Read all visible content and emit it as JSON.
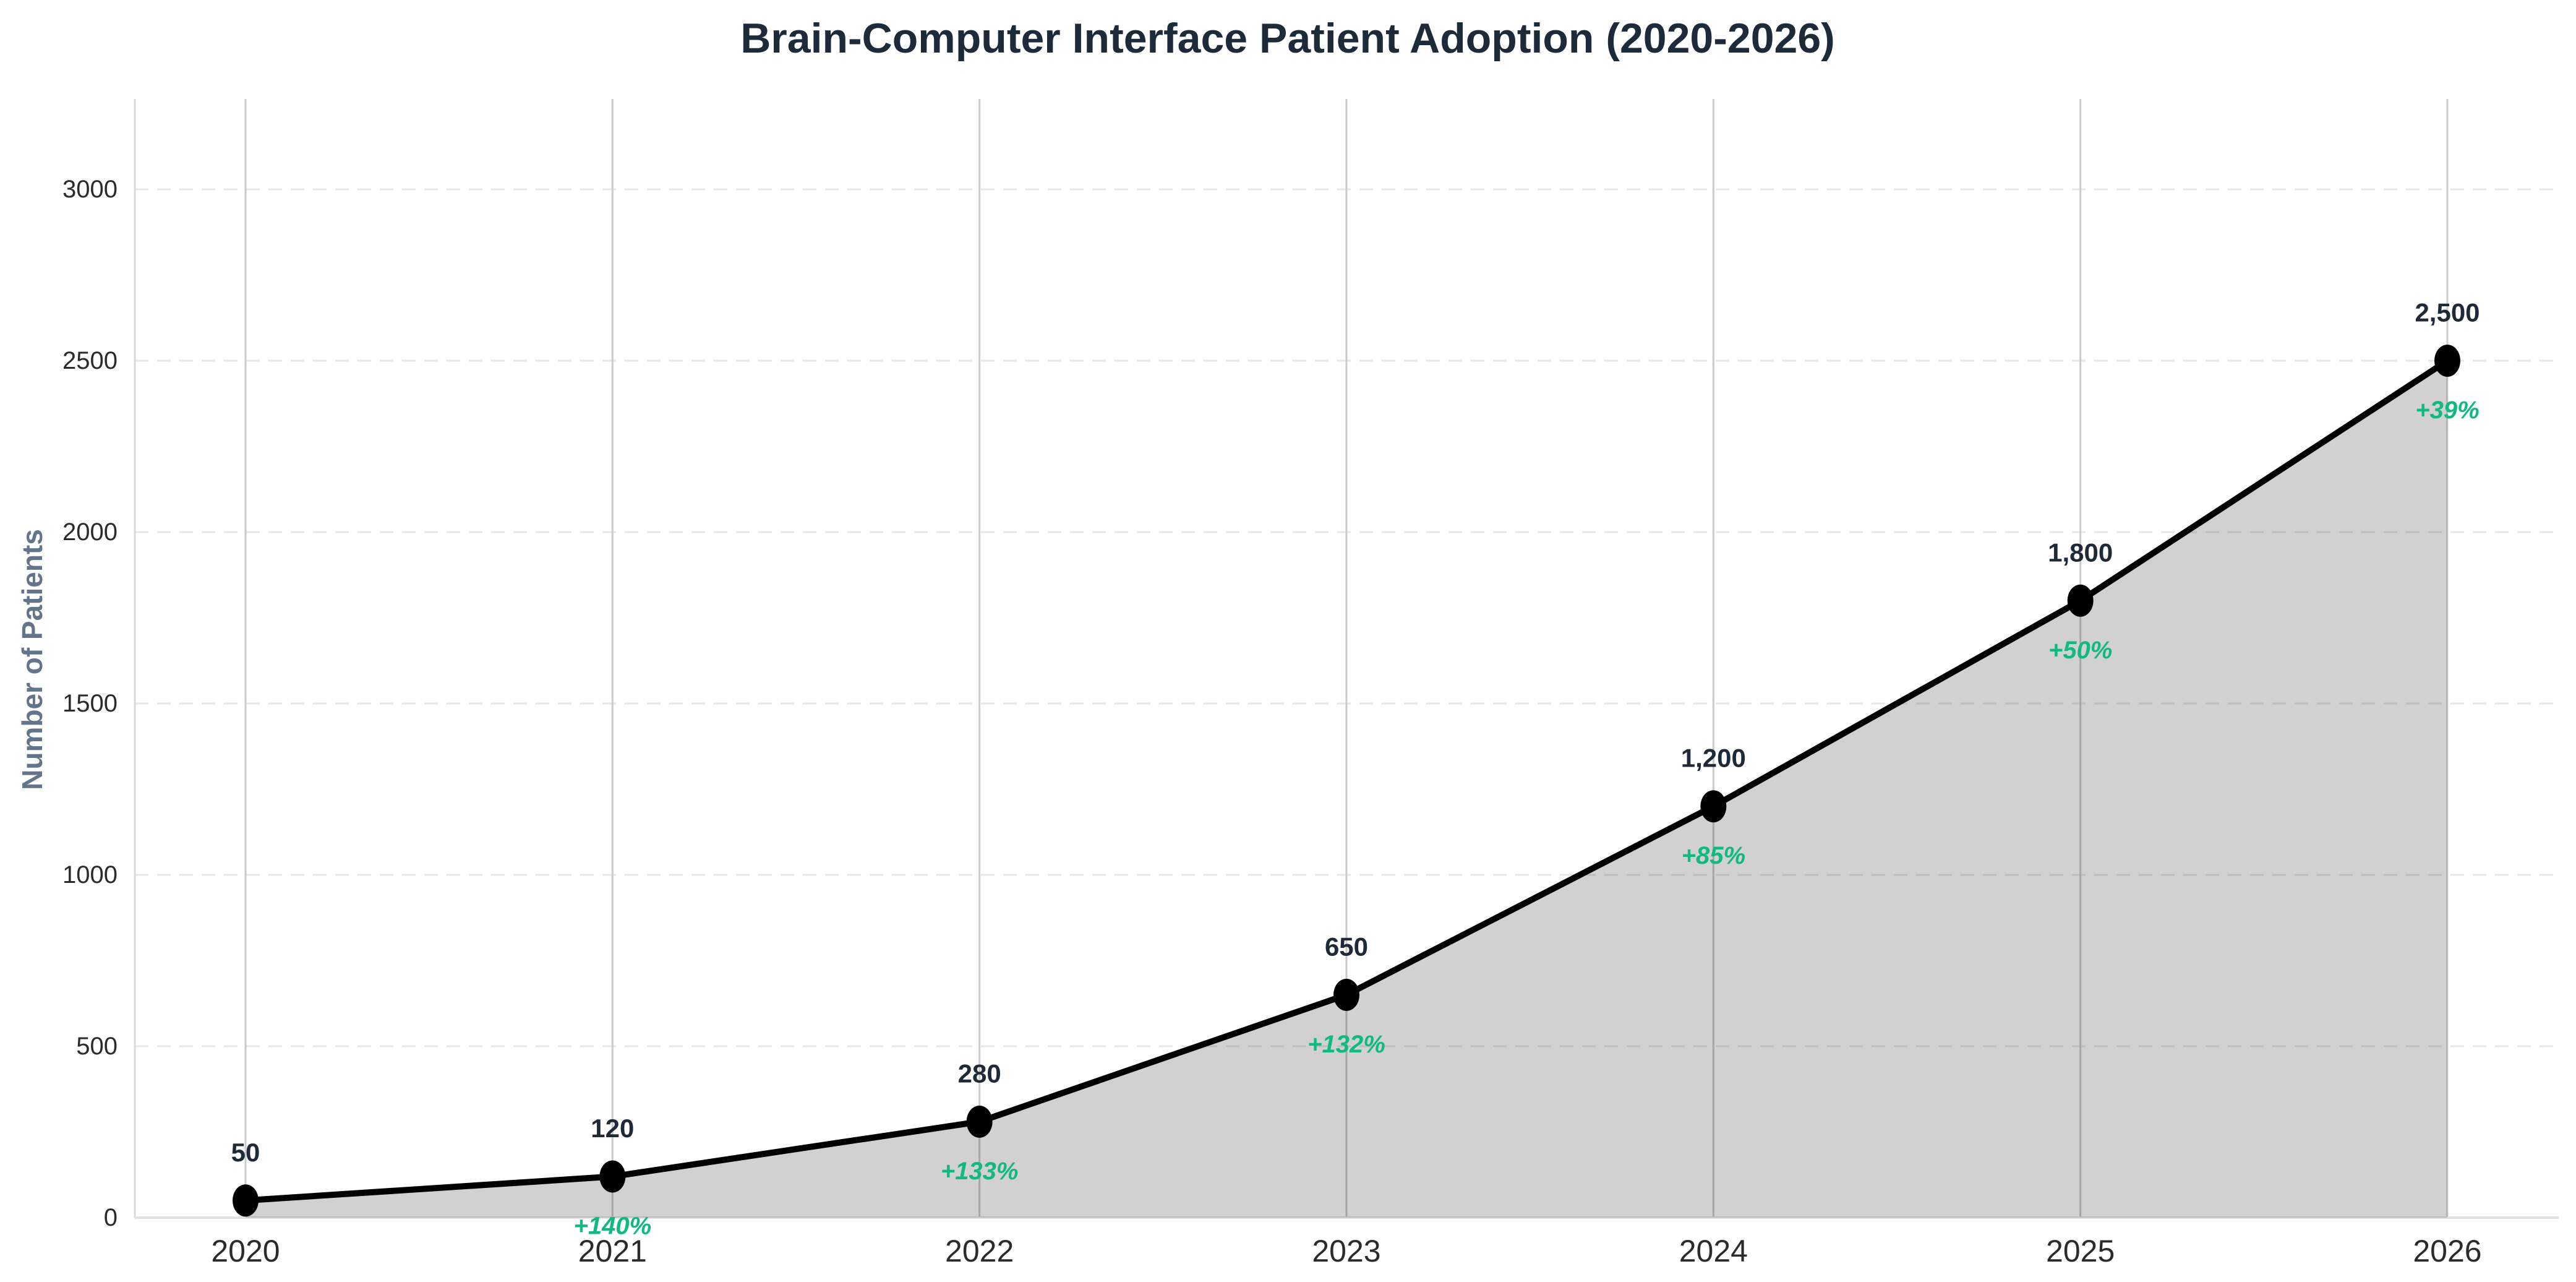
{
  "chart_data": {
    "type": "area",
    "title": "Brain-Computer Interface Patient Adoption (2020-2026)",
    "xlabel": "",
    "ylabel": "Number of Patients",
    "categories": [
      "2020",
      "2021",
      "2022",
      "2023",
      "2024",
      "2025",
      "2026"
    ],
    "values": [
      50,
      120,
      280,
      650,
      1200,
      1800,
      2500
    ],
    "value_labels": [
      "50",
      "120",
      "280",
      "650",
      "1,200",
      "1,800",
      "2,500"
    ],
    "growth_labels": [
      null,
      "+140%",
      "+133%",
      "+132%",
      "+85%",
      "+50%",
      "+39%"
    ],
    "series": [
      {
        "name": "Number of Patients",
        "values": [
          50,
          120,
          280,
          650,
          1200,
          1800,
          2500
        ]
      }
    ],
    "yticks": [
      0,
      500,
      1000,
      1500,
      2000,
      2500,
      3000
    ],
    "ytick_labels": [
      "0",
      "500",
      "1000",
      "1500",
      "2000",
      "2500",
      "3000"
    ],
    "ylim": [
      0,
      3265
    ],
    "grid": true,
    "grid_style": {
      "horizontal": "dashed",
      "vertical": "solid"
    },
    "legend_position": "none",
    "colors": {
      "line": "#000000",
      "marker": "#000000",
      "area_fill": "#000000",
      "area_opacity": 0.18,
      "title_text": "#1c2a3a",
      "value_label_text": "#1e2a38",
      "growth_label_text": "#10b981",
      "axis_title_text": "#64748b",
      "tick_label_text": "#2b2b2b",
      "vertical_grid": "#cbcbcb",
      "horizontal_grid": "#e7e7e7",
      "x_spine": "#e3e3e3",
      "y_spine": "#d9d9d9"
    }
  }
}
